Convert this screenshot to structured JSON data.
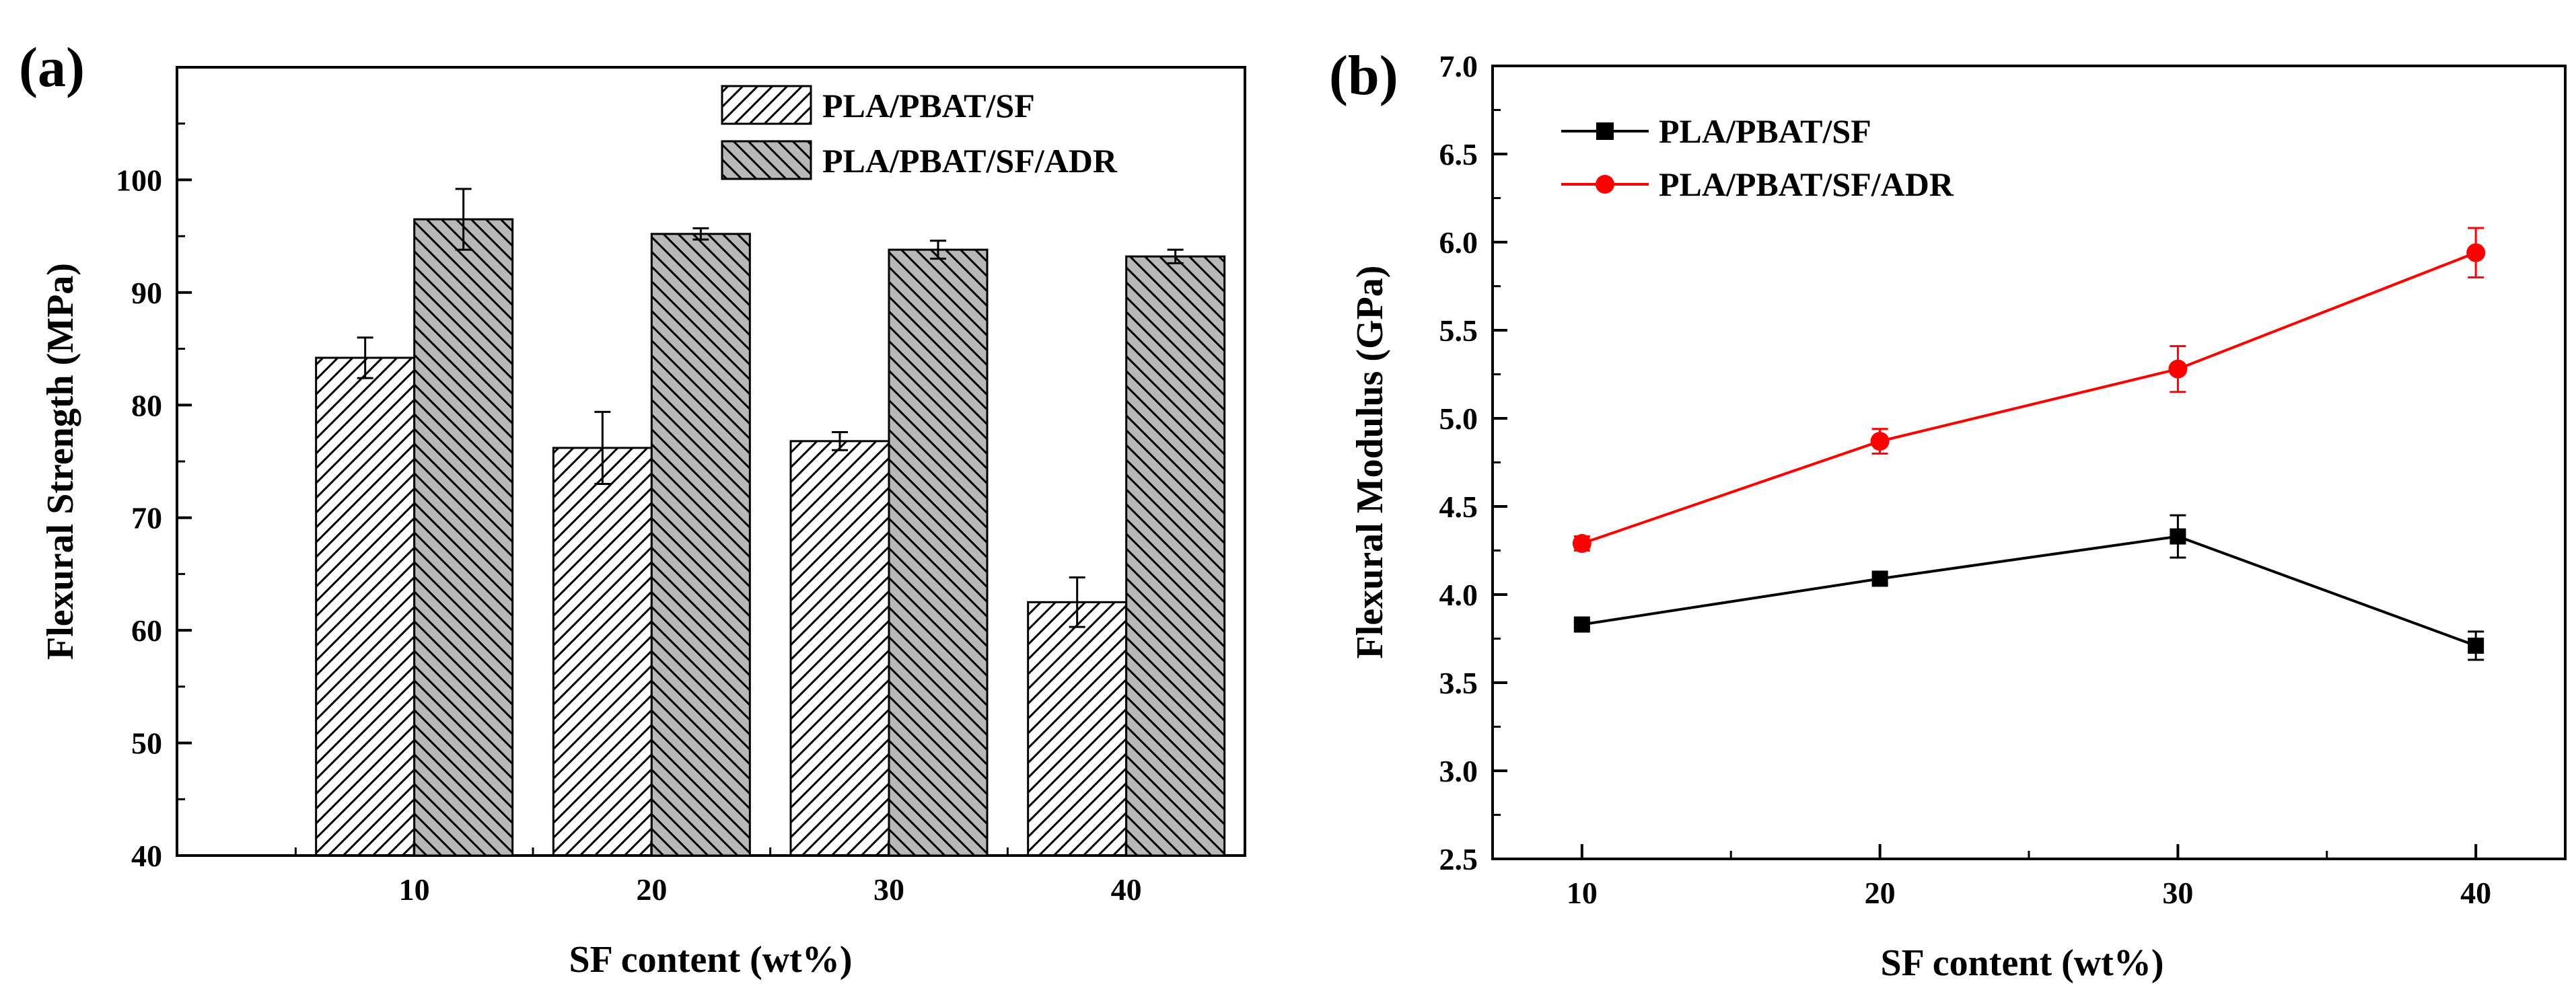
{
  "chart_data": [
    {
      "panel_label": "(a)",
      "type": "bar",
      "xlabel": "SF content (wt%)",
      "ylabel": "Flexural Strength (MPa)",
      "categories": [
        "10",
        "20",
        "30",
        "40"
      ],
      "ylim": [
        40,
        110
      ],
      "yticks": [
        40,
        50,
        60,
        70,
        80,
        90,
        100
      ],
      "legend_position": "top-right",
      "series": [
        {
          "name": "PLA/PBAT/SF",
          "values": [
            84.2,
            76.2,
            76.8,
            62.5
          ],
          "errors": [
            1.8,
            3.2,
            0.8,
            2.2
          ],
          "fill": "#ffffff",
          "hatch": "forward"
        },
        {
          "name": "PLA/PBAT/SF/ADR",
          "values": [
            96.5,
            95.2,
            93.8,
            93.2
          ],
          "errors": [
            2.7,
            0.5,
            0.8,
            0.6
          ],
          "fill": "#b8b8b8",
          "hatch": "back"
        }
      ]
    },
    {
      "panel_label": "(b)",
      "type": "line",
      "xlabel": "SF content (wt%)",
      "ylabel": "Flexural Modulus (GPa)",
      "x": [
        10,
        20,
        30,
        40
      ],
      "xlim": [
        7,
        43
      ],
      "ylim": [
        2.5,
        7.0
      ],
      "xticks": [
        10,
        20,
        30,
        40
      ],
      "yticks": [
        "2.5",
        "3.0",
        "3.5",
        "4.0",
        "4.5",
        "5.0",
        "5.5",
        "6.0",
        "6.5",
        "7.0"
      ],
      "legend_position": "top-left",
      "series": [
        {
          "name": "PLA/PBAT/SF",
          "values": [
            3.83,
            4.09,
            4.33,
            3.71
          ],
          "errors": [
            0.02,
            0.03,
            0.12,
            0.08
          ],
          "color": "#000000",
          "marker": "square"
        },
        {
          "name": "PLA/PBAT/SF/ADR",
          "values": [
            4.29,
            4.87,
            5.28,
            5.94
          ],
          "errors": [
            0.04,
            0.07,
            0.13,
            0.14
          ],
          "color": "#ff0000",
          "marker": "circle"
        }
      ]
    }
  ]
}
